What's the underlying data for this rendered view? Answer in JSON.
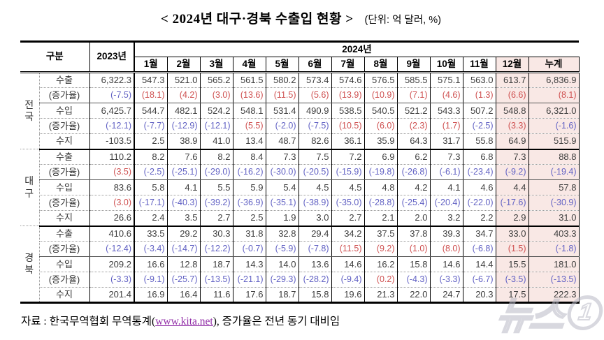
{
  "title": "< 2024년 대구·경북 수출입 현황 >",
  "unit_label": "(단위: 억 달러, %)",
  "colors": {
    "positive_growth": "#cf5151",
    "negative_growth": "#6262c4",
    "value_text": "#3e3e3e",
    "highlight_column_bg": "#f9e8e5",
    "link": "#922fa8"
  },
  "table": {
    "corner_label": "구분",
    "col_2023_label": "2023년",
    "col_2024_label": "2024년",
    "month_headers": [
      "1월",
      "2월",
      "3월",
      "4월",
      "5월",
      "6월",
      "7월",
      "8월",
      "9월",
      "10월",
      "11월",
      "12월",
      "누계"
    ],
    "highlighted_columns": [
      "12월",
      "누계"
    ],
    "groups": [
      {
        "region": "전국",
        "rows": [
          {
            "label": "수출",
            "type": "value",
            "values": [
              "6,322.3",
              "547.3",
              "521.0",
              "565.2",
              "561.5",
              "580.2",
              "573.4",
              "574.6",
              "576.5",
              "585.5",
              "575.1",
              "563.0",
              "613.7",
              "6,836.9"
            ]
          },
          {
            "label": "(증가율)",
            "type": "growth",
            "values": [
              "(-7.5)",
              "(18.1)",
              "(4.2)",
              "(3.0)",
              "(13.6)",
              "(11.5)",
              "(5.6)",
              "(13.9)",
              "(10.9)",
              "(7.1)",
              "(4.6)",
              "(1.3)",
              "(6.6)",
              "(8.1)"
            ]
          },
          {
            "label": "수입",
            "type": "value",
            "values": [
              "6,425.7",
              "544.7",
              "482.1",
              "524.2",
              "548.1",
              "531.4",
              "490.9",
              "538.5",
              "540.5",
              "521.2",
              "543.3",
              "507.2",
              "548.8",
              "6,321.0"
            ]
          },
          {
            "label": "(증가율)",
            "type": "growth",
            "values": [
              "(-12.1)",
              "(-7.7)",
              "(-12.9)",
              "(-12.1)",
              "(5.5)",
              "(-2.0)",
              "(-7.5)",
              "(10.5)",
              "(6.0)",
              "(2.3)",
              "(1.7)",
              "(-2.5)",
              "(3.3)",
              "(-1.6)"
            ]
          },
          {
            "label": "수지",
            "type": "value",
            "values": [
              "-103.5",
              "2.5",
              "38.9",
              "41.0",
              "13.4",
              "48.7",
              "82.6",
              "36.1",
              "35.9",
              "64.3",
              "31.7",
              "55.8",
              "64.9",
              "515.9"
            ]
          }
        ]
      },
      {
        "region": "대구",
        "rows": [
          {
            "label": "수출",
            "type": "value",
            "values": [
              "110.2",
              "8.2",
              "7.6",
              "8.2",
              "8.4",
              "7.3",
              "7.5",
              "7.2",
              "6.9",
              "6.2",
              "7.3",
              "6.8",
              "7.3",
              "88.8"
            ]
          },
          {
            "label": "(증가율)",
            "type": "growth",
            "values": [
              "(3.5)",
              "(-2.5)",
              "(-25.1)",
              "(-29.0)",
              "(-16.2)",
              "(-30.0)",
              "(-20.5)",
              "(-15.9)",
              "(-19.8)",
              "(-26.8)",
              "(-6.1)",
              "(-23.4)",
              "(-9.2)",
              "(-19.4)"
            ]
          },
          {
            "label": "수입",
            "type": "value",
            "values": [
              "83.6",
              "5.8",
              "4.1",
              "5.5",
              "5.9",
              "5.4",
              "4.5",
              "4.5",
              "4.8",
              "4.2",
              "4.1",
              "4.6",
              "4.4",
              "57.8"
            ]
          },
          {
            "label": "(증가율)",
            "type": "growth",
            "values": [
              "(3.0)",
              "(-17.1)",
              "(-40.3)",
              "(-39.2)",
              "(-36.9)",
              "(-35.1)",
              "(-38.9)",
              "(-35.0)",
              "(-28.8)",
              "(-25.4)",
              "(-20.4)",
              "(-22.0)",
              "(-17.6)",
              "(-30.9)"
            ]
          },
          {
            "label": "수지",
            "type": "value",
            "values": [
              "26.6",
              "2.4",
              "3.5",
              "2.7",
              "2.5",
              "1.9",
              "3.0",
              "2.7",
              "2.1",
              "2.0",
              "3.2",
              "2.2",
              "2.9",
              "31.0"
            ]
          }
        ]
      },
      {
        "region": "경북",
        "rows": [
          {
            "label": "수출",
            "type": "value",
            "values": [
              "410.6",
              "33.5",
              "29.2",
              "30.3",
              "31.8",
              "32.8",
              "29.4",
              "34.2",
              "37.5",
              "37.8",
              "39.3",
              "34.7",
              "33.0",
              "403.3"
            ]
          },
          {
            "label": "(증가율)",
            "type": "growth",
            "values": [
              "(-12.4)",
              "(-3.4)",
              "(-14.7)",
              "(-12.2)",
              "(-0.7)",
              "(-5.9)",
              "(-7.8)",
              "(11.5)",
              "(9.2)",
              "(1.0)",
              "(8.0)",
              "(-6.8)",
              "(1.5)",
              "(-1.8)"
            ]
          },
          {
            "label": "수입",
            "type": "value",
            "values": [
              "209.2",
              "16.6",
              "12.8",
              "18.7",
              "14.3",
              "14.0",
              "13.6",
              "14.6",
              "16.2",
              "15.8",
              "14.6",
              "14.4",
              "15.5",
              "181.0"
            ]
          },
          {
            "label": "(증가율)",
            "type": "growth",
            "values": [
              "(-3.3)",
              "(-9.1)",
              "(-25.7)",
              "(-13.5)",
              "(-21.1)",
              "(-29.3)",
              "(-28.2)",
              "(-9.4)",
              "(0.2)",
              "(-4.3)",
              "(-3.3)",
              "(-6.7)",
              "(-3.5)",
              "(-13.5)"
            ]
          },
          {
            "label": "수지",
            "type": "value",
            "values": [
              "201.4",
              "16.9",
              "16.4",
              "11.6",
              "17.6",
              "18.7",
              "15.8",
              "19.6",
              "21.3",
              "22.0",
              "24.7",
              "20.3",
              "17.5",
              "222.3"
            ]
          }
        ]
      }
    ]
  },
  "footer": {
    "prefix": "자료 : 한국무역협회 무역통계(",
    "link": "www.kita.net",
    "suffix": "), 증가율은 전년 동기 대비임"
  },
  "watermark": {
    "text": "뉴스",
    "badge": "1"
  }
}
